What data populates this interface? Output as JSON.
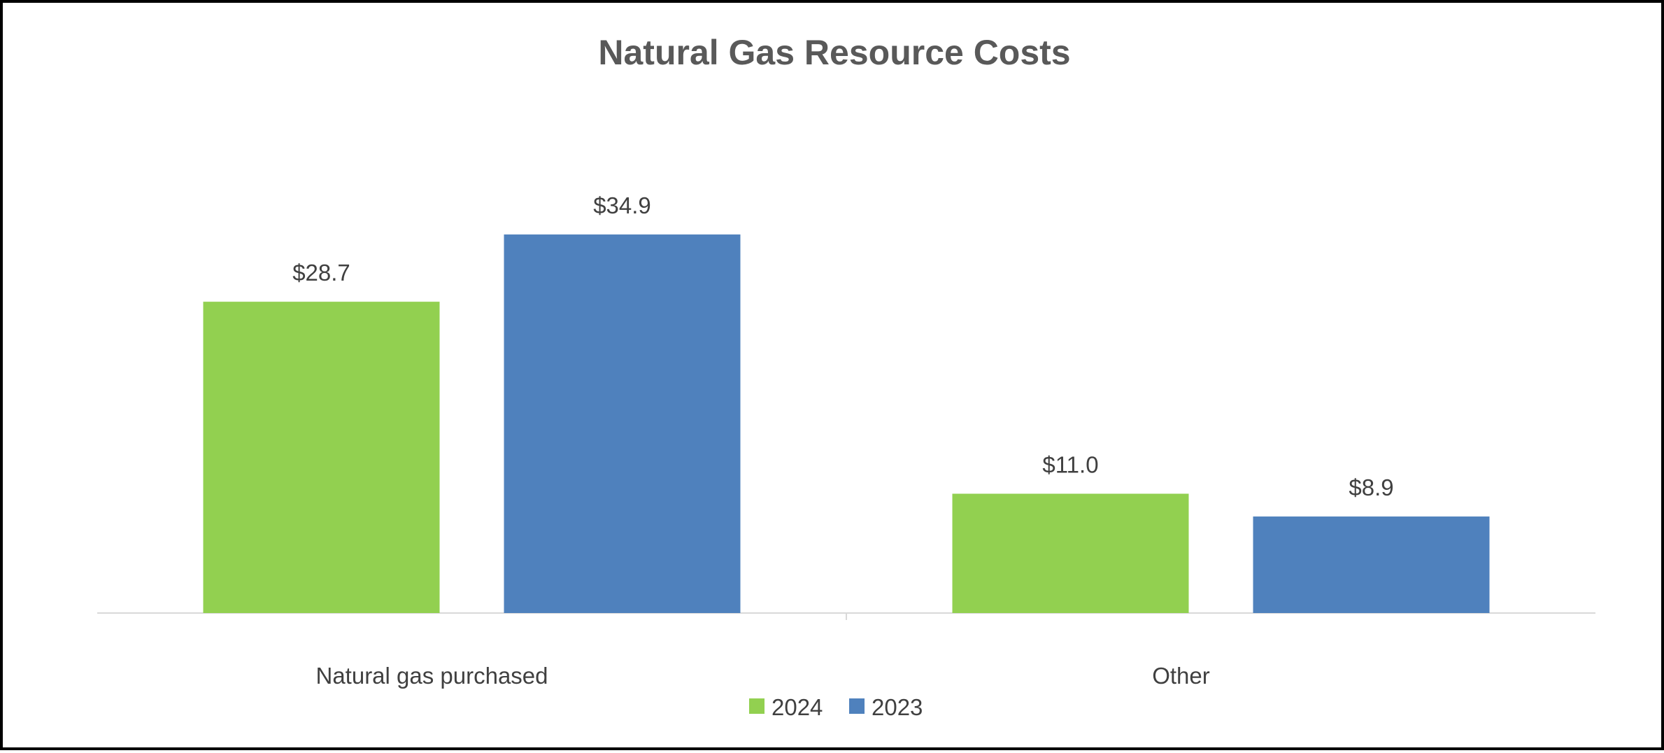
{
  "chart_data": {
    "type": "bar",
    "title": "Natural Gas Resource Costs",
    "xlabel": "",
    "ylabel": "",
    "categories": [
      "Natural gas purchased",
      "Other"
    ],
    "series": [
      {
        "name": "2024",
        "values": [
          28.7,
          11.0
        ],
        "labels": [
          "$28.7",
          "$11.0"
        ],
        "color": "#92d050"
      },
      {
        "name": "2023",
        "values": [
          34.9,
          8.9
        ],
        "labels": [
          "$34.9",
          "$8.9"
        ],
        "color": "#4f81bd"
      }
    ],
    "ylim": [
      0,
      40
    ],
    "grid": false,
    "legend_position": "bottom"
  }
}
